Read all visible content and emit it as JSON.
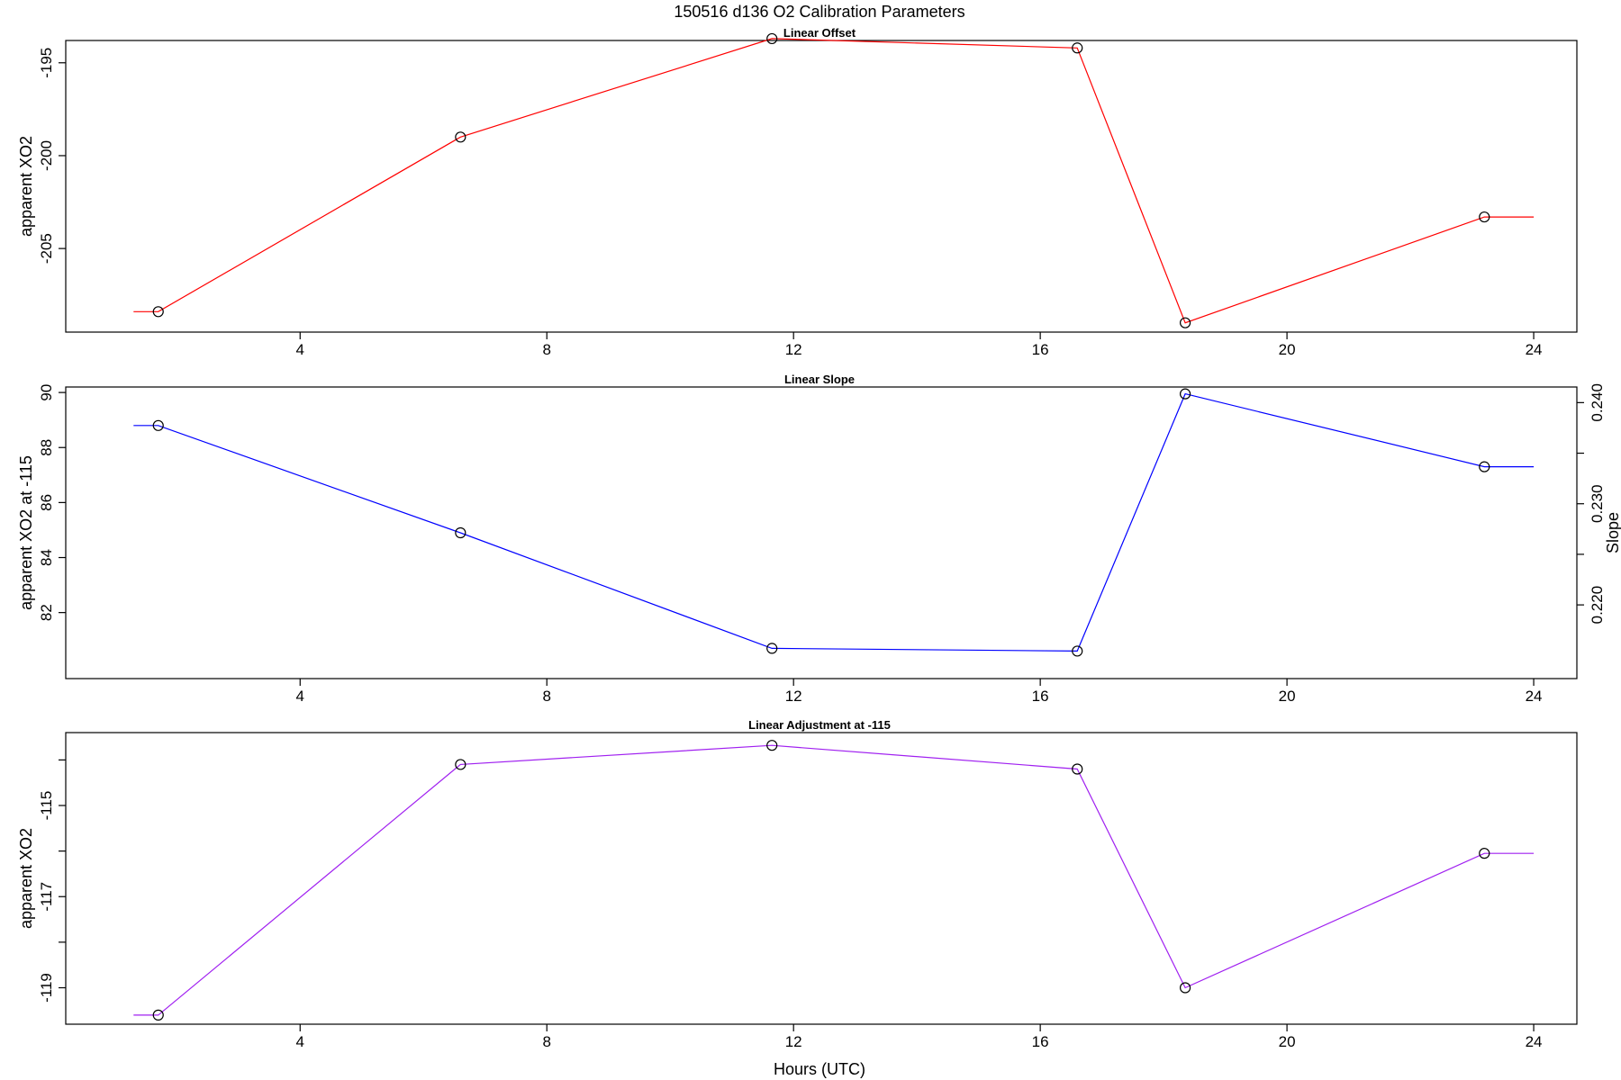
{
  "figure": {
    "title": "150516   d136   O2 Calibration Parameters",
    "xlabel": "Hours (UTC)"
  },
  "chart_data": [
    {
      "type": "line",
      "title": "Linear Offset",
      "xlabel": "",
      "ylabel": "apparent XO2",
      "xlim": [
        0.2,
        24.7
      ],
      "ylim": [
        -209.5,
        -193.8
      ],
      "xticks": [
        4,
        8,
        12,
        16,
        20,
        24
      ],
      "yticks": [
        -205,
        -200,
        -195
      ],
      "grid": false,
      "color": "#ff0000",
      "extend_left": 1.3,
      "extend_right": 24.0,
      "x": [
        1.7,
        6.6,
        11.65,
        16.6,
        18.35,
        23.2
      ],
      "y": [
        -208.4,
        -199.0,
        -193.7,
        -194.2,
        -209.0,
        -203.3
      ]
    },
    {
      "type": "line",
      "title": "Linear Slope",
      "xlabel": "",
      "ylabel": "apparent XO2 at -115",
      "y2label": "Slope",
      "xlim": [
        0.2,
        24.7
      ],
      "ylim": [
        79.6,
        90.2
      ],
      "xticks": [
        4,
        8,
        12,
        16,
        20,
        24
      ],
      "yticks": [
        82,
        84,
        86,
        88,
        90
      ],
      "y2ticks": [
        0.22,
        0.23,
        0.24
      ],
      "y2minor": [
        0.225,
        0.235
      ],
      "y2_scale": {
        "a": 0.00272,
        "b": -0.0038
      },
      "grid": false,
      "color": "#0000ff",
      "extend_left": 1.3,
      "extend_right": 24.0,
      "x": [
        1.7,
        6.6,
        11.65,
        16.6,
        18.35,
        23.2
      ],
      "y": [
        88.8,
        84.9,
        80.7,
        80.6,
        89.95,
        87.3
      ]
    },
    {
      "type": "line",
      "title": "Linear Adjustment at -115",
      "xlabel": "Hours (UTC)",
      "ylabel": "apparent XO2",
      "xlim": [
        0.2,
        24.7
      ],
      "ylim": [
        -119.8,
        -113.4
      ],
      "xticks": [
        4,
        8,
        12,
        16,
        20,
        24
      ],
      "yticks": [
        -115,
        -117,
        -119
      ],
      "yminor": [
        -114,
        -116,
        -118
      ],
      "grid": false,
      "color": "#a020f0",
      "extend_left": 1.3,
      "extend_right": 24.0,
      "x": [
        1.7,
        6.6,
        11.65,
        16.6,
        18.35,
        23.2
      ],
      "y": [
        -119.6,
        -114.1,
        -113.68,
        -114.2,
        -119.0,
        -116.05
      ]
    }
  ]
}
